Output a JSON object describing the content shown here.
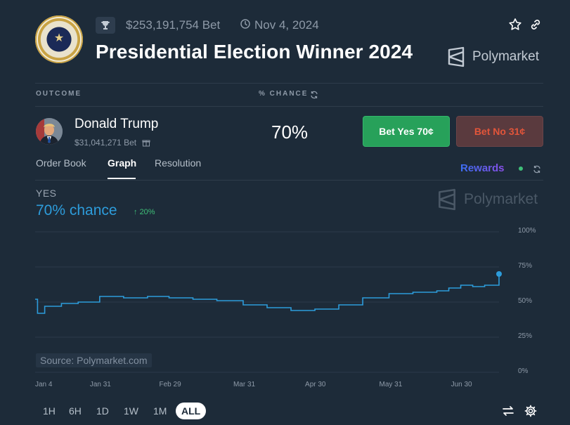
{
  "header": {
    "total_bet": "$253,191,754 Bet",
    "end_date": "Nov 4, 2024",
    "title": "Presidential Election Winner 2024",
    "brand": "Polymarket"
  },
  "table": {
    "col_outcome": "OUTCOME",
    "col_chance": "% CHANCE",
    "row": {
      "name": "Donald Trump",
      "bet": "$31,041,271 Bet",
      "chance": "70%",
      "bet_yes": "Bet Yes 70¢",
      "bet_no": "Bet No 31¢"
    }
  },
  "tabs": [
    {
      "label": "Order Book",
      "active": false
    },
    {
      "label": "Graph",
      "active": true
    },
    {
      "label": "Resolution",
      "active": false
    }
  ],
  "rewards_label": "Rewards",
  "graph": {
    "outcome_label": "YES",
    "chance_text": "70% chance",
    "change_text": "20%",
    "watermark": "Polymarket",
    "source": "Source: Polymarket.com"
  },
  "chart_data": {
    "type": "line",
    "y_ticks": [
      "100%",
      "75%",
      "50%",
      "25%",
      "0%"
    ],
    "x_ticks": [
      "Jan 4",
      "Jan 31",
      "Feb 29",
      "Mar 31",
      "Apr 30",
      "May 31",
      "Jun 30"
    ],
    "ylim": [
      0,
      100
    ],
    "series": [
      {
        "color": "#2d9cdb",
        "x": [
          "Jan 4",
          "Jan 5",
          "Jan 8",
          "Jan 15",
          "Jan 22",
          "Jan 31",
          "Feb 10",
          "Feb 20",
          "Feb 29",
          "Mar 10",
          "Mar 20",
          "Mar 31",
          "Apr 10",
          "Apr 20",
          "Apr 30",
          "May 10",
          "May 20",
          "May 31",
          "Jun 10",
          "Jun 20",
          "Jun 25",
          "Jun 30",
          "Jul 5",
          "Jul 10",
          "Jul 14",
          "Jul 16"
        ],
        "y": [
          52,
          42,
          47,
          49,
          50,
          54,
          53,
          54,
          53,
          52,
          51,
          48,
          46,
          44,
          45,
          48,
          53,
          56,
          57,
          58,
          60,
          62,
          61,
          62,
          62,
          70
        ]
      }
    ]
  },
  "ranges": [
    {
      "label": "1H",
      "active": false
    },
    {
      "label": "6H",
      "active": false
    },
    {
      "label": "1D",
      "active": false
    },
    {
      "label": "1W",
      "active": false
    },
    {
      "label": "1M",
      "active": false
    },
    {
      "label": "ALL",
      "active": true
    }
  ]
}
